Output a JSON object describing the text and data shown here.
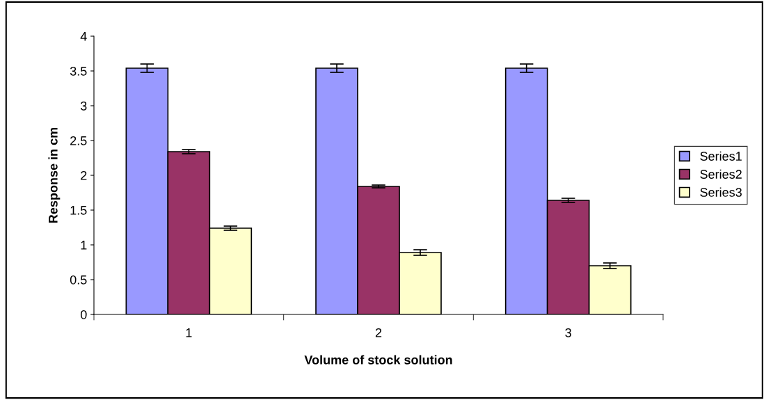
{
  "chart_data": {
    "type": "bar",
    "xlabel": "Volume of stock solution",
    "ylabel": "Response in cm",
    "categories": [
      "1",
      "2",
      "3"
    ],
    "series": [
      {
        "name": "Series1",
        "color": "#9999ff",
        "values": [
          3.54,
          3.54,
          3.54
        ],
        "errors": [
          0.06,
          0.06,
          0.06
        ]
      },
      {
        "name": "Series2",
        "color": "#993366",
        "values": [
          2.34,
          1.84,
          1.64
        ],
        "errors": [
          0.03,
          0.02,
          0.03
        ]
      },
      {
        "name": "Series3",
        "color": "#ffffcc",
        "values": [
          1.24,
          0.89,
          0.7
        ],
        "errors": [
          0.03,
          0.04,
          0.04
        ]
      }
    ],
    "ylim": [
      0,
      4
    ],
    "yticks": [
      0,
      0.5,
      1,
      1.5,
      2,
      2.5,
      3,
      3.5,
      4
    ],
    "grid": false,
    "legend": "right"
  }
}
